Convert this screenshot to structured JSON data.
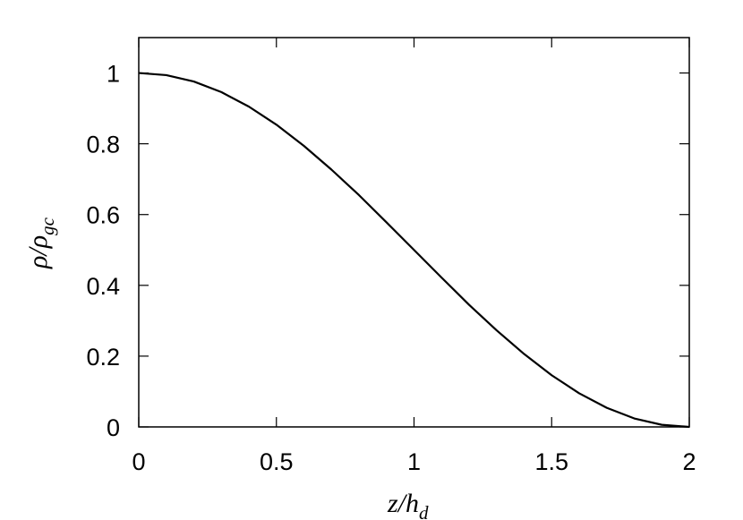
{
  "chart_data": {
    "type": "line",
    "xlabel": {
      "main": "z/h",
      "sub": "d"
    },
    "ylabel": {
      "main": "ρ/ρ",
      "sub": "gc"
    },
    "xlim": [
      0,
      2
    ],
    "ylim": [
      0,
      1.1
    ],
    "xticks": [
      "0",
      "0.5",
      "1",
      "1.5",
      "2"
    ],
    "yticks": [
      "0",
      "0.2",
      "0.4",
      "0.6",
      "0.8",
      "1"
    ],
    "grid": false,
    "series": [
      {
        "color": "#000000",
        "x": [
          0,
          0.1,
          0.2,
          0.3,
          0.4,
          0.5,
          0.6,
          0.7,
          0.8,
          0.9,
          1.0,
          1.1,
          1.2,
          1.3,
          1.4,
          1.5,
          1.6,
          1.7,
          1.8,
          1.9,
          2.0
        ],
        "y": [
          1.0,
          0.994,
          0.976,
          0.946,
          0.905,
          0.854,
          0.794,
          0.727,
          0.655,
          0.578,
          0.5,
          0.422,
          0.345,
          0.273,
          0.206,
          0.146,
          0.095,
          0.054,
          0.024,
          0.006,
          0.0
        ]
      }
    ]
  }
}
